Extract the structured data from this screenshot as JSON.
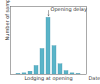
{
  "chart_data": {
    "type": "bar",
    "xlabel": "Lodging at opening",
    "ylabel": "Number of samples",
    "annotations": [
      "Opening delay",
      "Date"
    ],
    "categories": [
      null,
      null,
      null,
      null,
      null,
      null,
      null,
      null,
      null,
      null,
      null
    ],
    "values": [
      1,
      2,
      5,
      15,
      45,
      100,
      50,
      18,
      6,
      2,
      1
    ],
    "color": "#5ab4c8",
    "ylim": [
      0,
      120
    ],
    "yticks": [],
    "tick_labels": false
  }
}
